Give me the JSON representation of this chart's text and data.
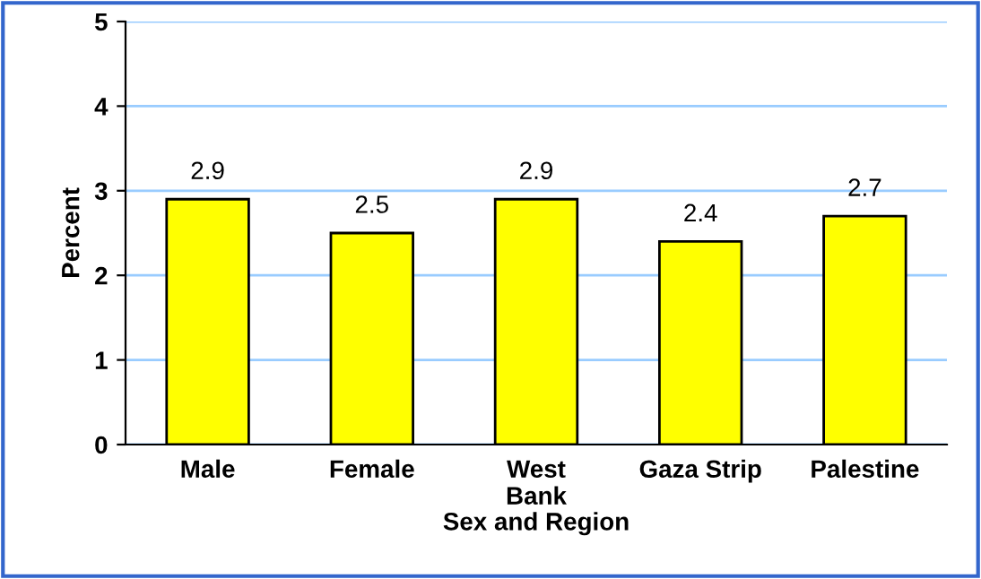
{
  "chart_data": {
    "type": "bar",
    "xlabel": "Sex and Region",
    "ylabel": "Percent",
    "categories": [
      "Male",
      "Female",
      "West\nBank",
      "Gaza Strip",
      "Palestine"
    ],
    "values": [
      2.9,
      2.5,
      2.9,
      2.4,
      2.7
    ],
    "color": "#ffff00",
    "ylim": [
      0,
      5
    ],
    "yticks": [
      0,
      1,
      2,
      3,
      4,
      5
    ],
    "grid": "y",
    "data_labels": true
  }
}
